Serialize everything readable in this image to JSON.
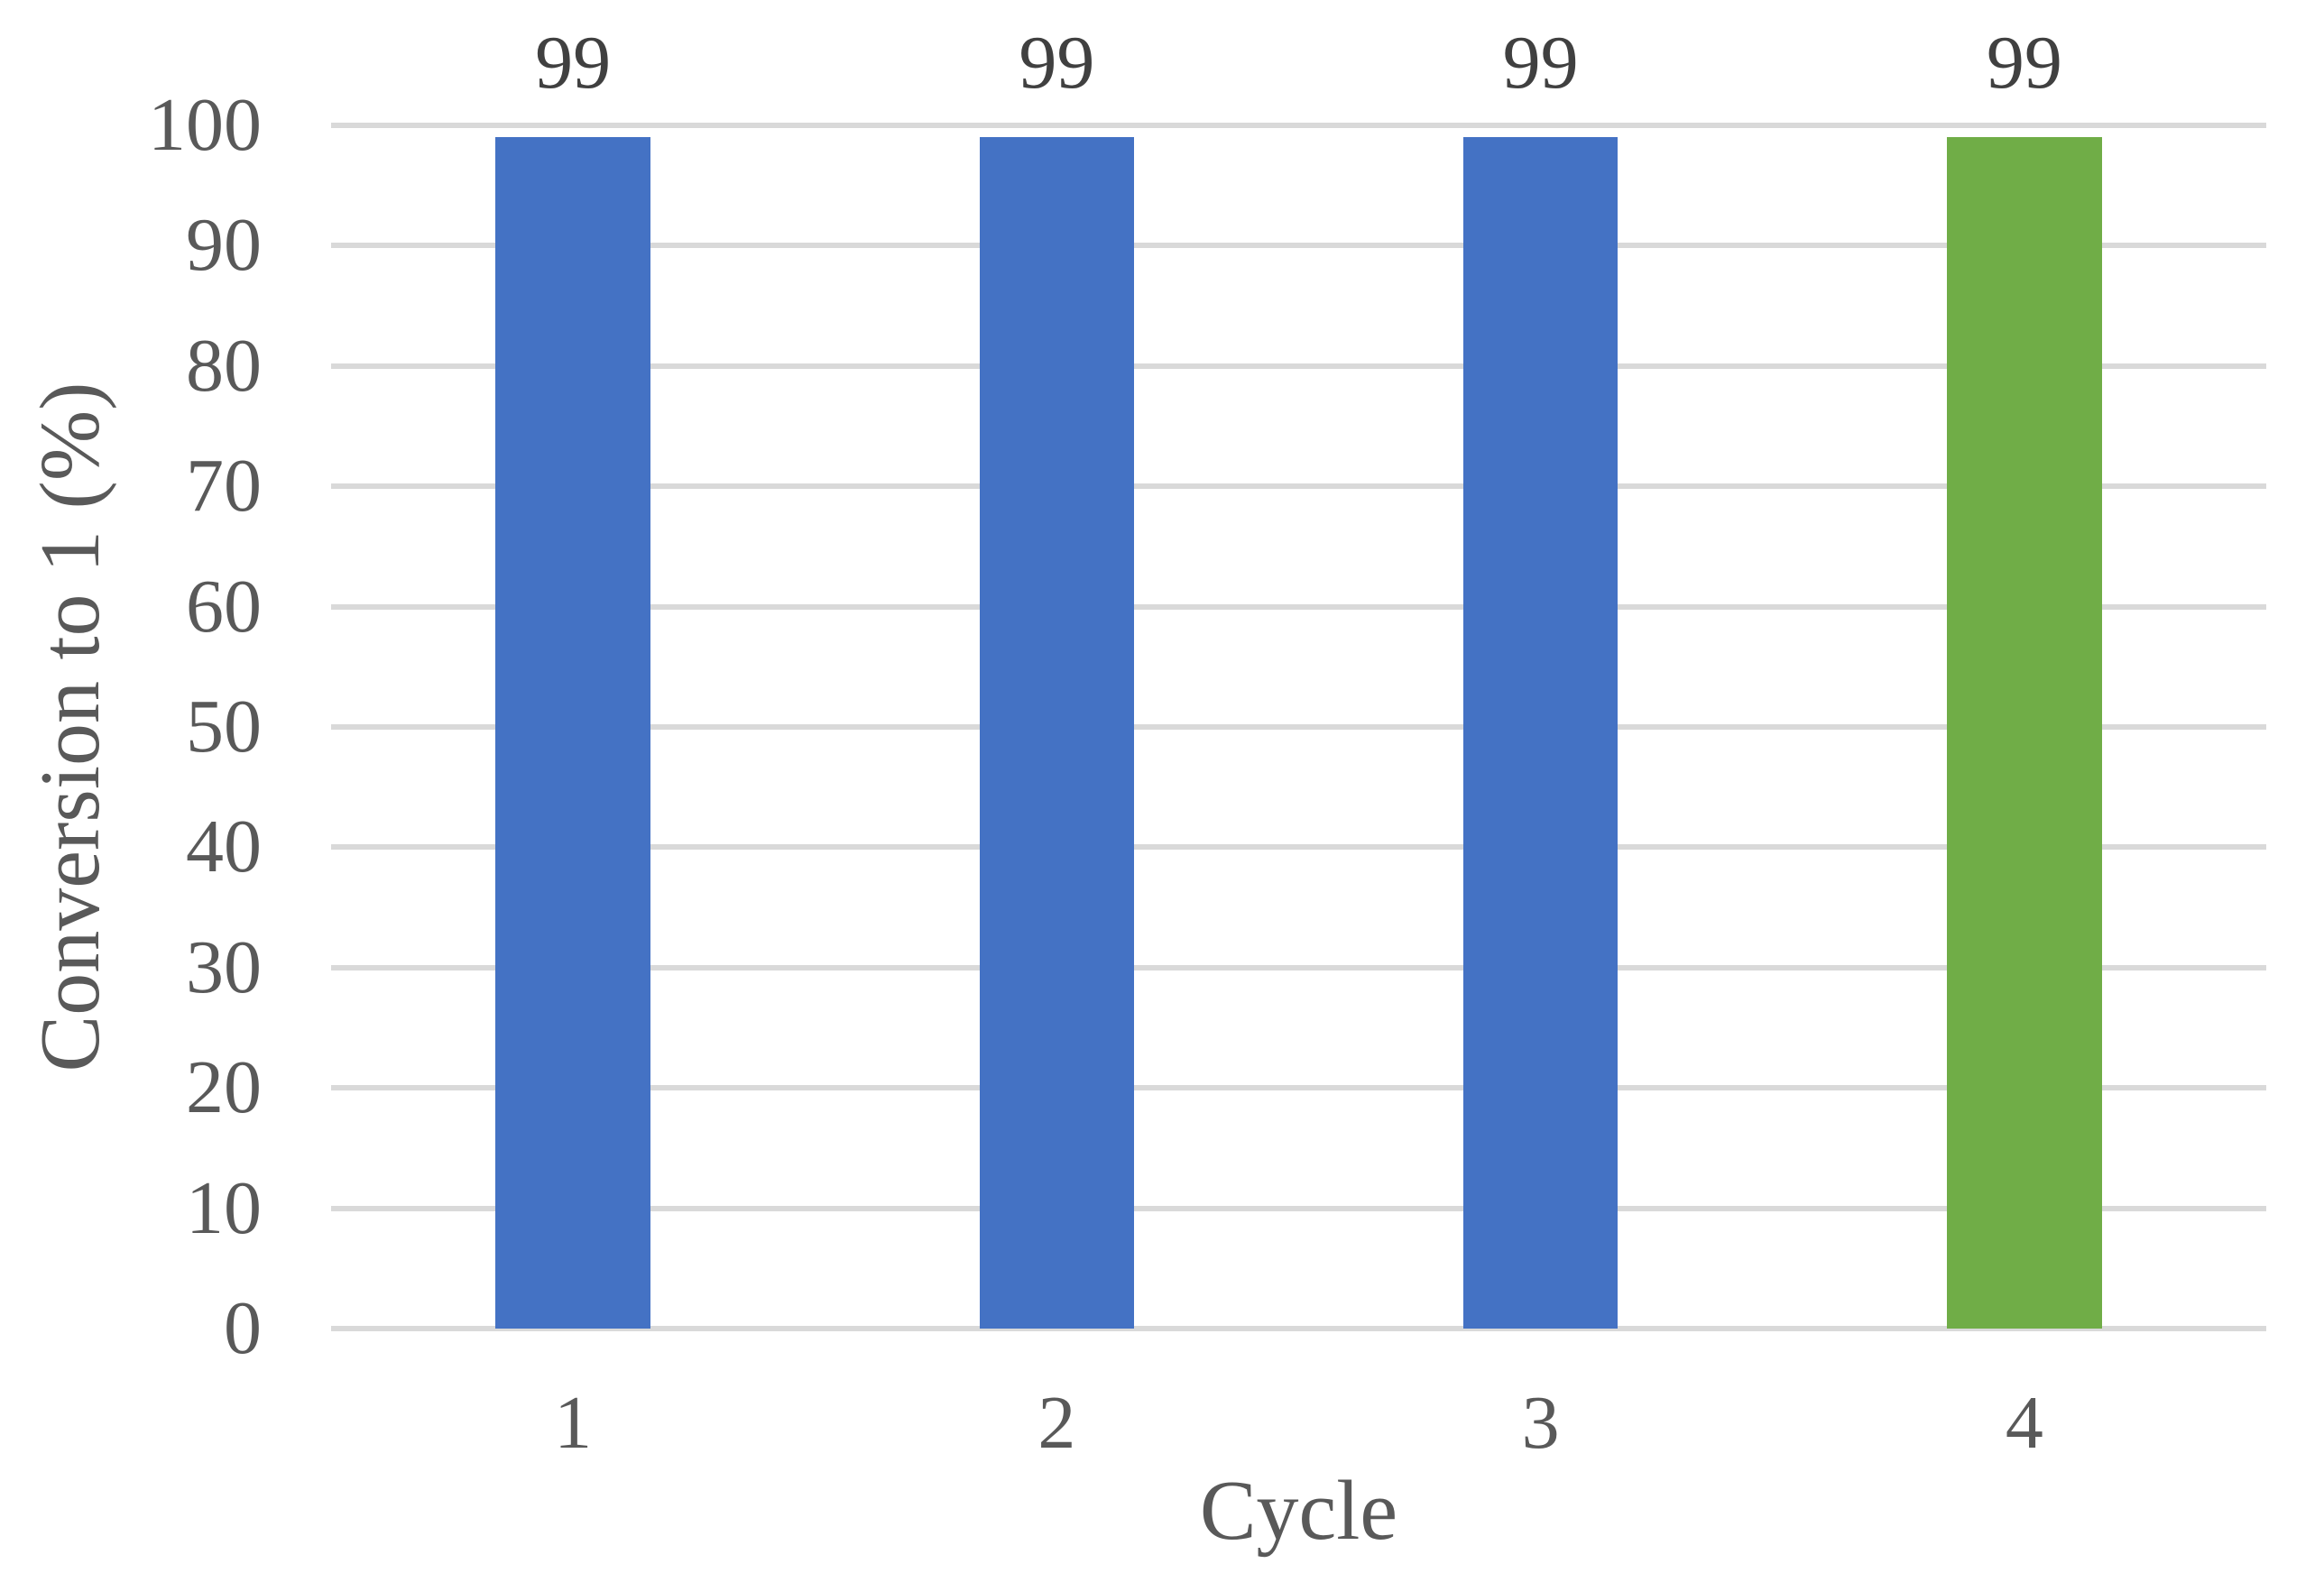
{
  "chart_data": {
    "type": "bar",
    "title": "",
    "categories": [
      "1",
      "2",
      "3",
      "4"
    ],
    "values": [
      99,
      99,
      99,
      99
    ],
    "data_labels": [
      "99",
      "99",
      "99",
      "99"
    ],
    "bar_colors": [
      "#4472C4",
      "#4472C4",
      "#4472C4",
      "#70AD47"
    ],
    "xlabel": "Cycle",
    "ylabel": "Conversion to 1 (%)",
    "ylim": [
      0,
      100
    ],
    "yticks": [
      0,
      10,
      20,
      30,
      40,
      50,
      60,
      70,
      80,
      90,
      100
    ],
    "grid": true,
    "legend": false,
    "colors": {
      "gridline": "#D9D9D9",
      "tick_text": "#595959",
      "data_label_text": "#404040",
      "background": "#ffffff"
    }
  }
}
